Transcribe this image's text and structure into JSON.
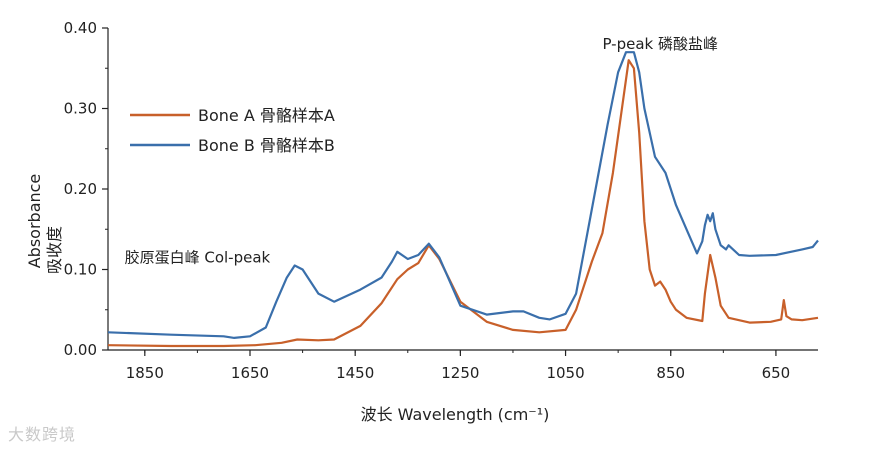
{
  "chart_data": {
    "type": "line",
    "xlabel": "波长 Wavelength (cm⁻¹)",
    "ylabel": "Absorbance",
    "ylabel_cn": "吸收度",
    "xlim": [
      1920,
      570
    ],
    "ylim": [
      0,
      0.4
    ],
    "x_reversed": true,
    "x_ticks": [
      1850,
      1650,
      1450,
      1250,
      1050,
      850,
      650
    ],
    "y_ticks": [
      0.0,
      0.1,
      0.2,
      0.3,
      0.4
    ],
    "x_tick_labels": [
      "1850",
      "1650",
      "1450",
      "1250",
      "1050",
      "850",
      "650"
    ],
    "y_tick_labels": [
      "0.00",
      "0.10",
      "0.20",
      "0.30",
      "0.40"
    ],
    "legend_position": "upper-left",
    "series": [
      {
        "name": "Bone A 骨骼样本A",
        "color": "#c8602a",
        "x": [
          1920,
          1800,
          1700,
          1640,
          1590,
          1560,
          1520,
          1490,
          1440,
          1400,
          1370,
          1350,
          1330,
          1310,
          1290,
          1250,
          1200,
          1150,
          1100,
          1050,
          1030,
          1000,
          980,
          960,
          945,
          930,
          920,
          910,
          900,
          890,
          880,
          870,
          860,
          850,
          840,
          820,
          790,
          785,
          775,
          765,
          755,
          740,
          700,
          660,
          640,
          635,
          630,
          620,
          600,
          570
        ],
        "y": [
          0.006,
          0.005,
          0.005,
          0.006,
          0.009,
          0.013,
          0.012,
          0.013,
          0.03,
          0.058,
          0.088,
          0.1,
          0.108,
          0.13,
          0.113,
          0.06,
          0.035,
          0.025,
          0.022,
          0.025,
          0.05,
          0.11,
          0.145,
          0.22,
          0.29,
          0.36,
          0.35,
          0.27,
          0.16,
          0.1,
          0.08,
          0.085,
          0.075,
          0.06,
          0.05,
          0.04,
          0.036,
          0.07,
          0.118,
          0.09,
          0.055,
          0.04,
          0.034,
          0.035,
          0.038,
          0.062,
          0.042,
          0.038,
          0.037,
          0.04
        ]
      },
      {
        "name": "Bone B 骨骼样本B",
        "color": "#3a6fab",
        "x": [
          1920,
          1800,
          1700,
          1680,
          1650,
          1620,
          1600,
          1580,
          1565,
          1550,
          1520,
          1490,
          1440,
          1400,
          1380,
          1370,
          1350,
          1330,
          1310,
          1290,
          1250,
          1200,
          1150,
          1130,
          1100,
          1080,
          1050,
          1030,
          1010,
          990,
          970,
          950,
          935,
          920,
          910,
          900,
          880,
          860,
          840,
          820,
          800,
          790,
          785,
          780,
          775,
          770,
          765,
          755,
          745,
          740,
          720,
          700,
          650,
          600,
          580,
          575,
          570
        ],
        "y": [
          0.022,
          0.019,
          0.017,
          0.015,
          0.017,
          0.028,
          0.06,
          0.09,
          0.105,
          0.1,
          0.07,
          0.06,
          0.075,
          0.09,
          0.11,
          0.122,
          0.113,
          0.118,
          0.132,
          0.115,
          0.055,
          0.044,
          0.048,
          0.048,
          0.04,
          0.038,
          0.045,
          0.07,
          0.14,
          0.21,
          0.28,
          0.345,
          0.37,
          0.37,
          0.345,
          0.3,
          0.24,
          0.22,
          0.18,
          0.15,
          0.12,
          0.135,
          0.155,
          0.168,
          0.16,
          0.17,
          0.15,
          0.13,
          0.125,
          0.13,
          0.118,
          0.117,
          0.118,
          0.125,
          0.128,
          0.132,
          0.136
        ]
      }
    ],
    "annotations": [
      {
        "text": "P-peak 磷酸盐峰",
        "x": 870,
        "y": 0.38
      },
      {
        "text": "胶原蛋白峰 Col-peak",
        "x": 1750,
        "y": 0.115
      }
    ]
  },
  "watermark": "大数跨境"
}
